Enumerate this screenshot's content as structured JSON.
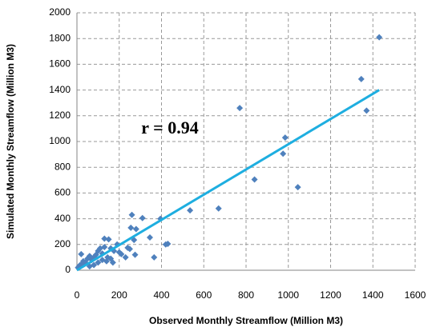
{
  "chart_data": {
    "type": "scatter",
    "annotation": "r = 0.94",
    "x_label": "Observed Monthly Streamflow (Million M3)",
    "y_label": "Simulated Monthly Streamflow (Million M3)",
    "xlim": [
      0,
      1600
    ],
    "xticks": [
      0,
      200,
      400,
      600,
      800,
      1000,
      1200,
      1400,
      1600
    ],
    "ylim": [
      0,
      2000
    ],
    "yticks": [
      0,
      200,
      400,
      600,
      800,
      1000,
      1200,
      1400,
      1600,
      1800,
      2000
    ],
    "grid": true,
    "series": [
      {
        "color": "#4f81bd",
        "x": [
          1430,
          1345,
          1370,
          770,
          985,
          975,
          1045,
          840,
          670,
          535,
          430,
          420,
          395,
          345,
          310,
          365,
          270,
          260,
          255,
          280,
          275,
          250,
          240,
          210,
          190,
          175,
          160,
          150,
          130,
          145,
          120,
          110,
          100,
          90,
          80,
          70,
          60,
          50,
          40,
          30,
          20,
          15,
          10,
          5,
          25,
          100,
          120,
          140,
          80,
          60,
          160,
          170,
          200,
          230,
          130
        ],
        "y": [
          1810,
          1485,
          1240,
          1260,
          1030,
          905,
          645,
          705,
          480,
          465,
          205,
          200,
          400,
          255,
          405,
          100,
          235,
          430,
          330,
          320,
          120,
          165,
          175,
          125,
          200,
          150,
          170,
          240,
          245,
          100,
          130,
          170,
          150,
          120,
          100,
          80,
          110,
          90,
          60,
          70,
          125,
          40,
          30,
          20,
          50,
          60,
          80,
          70,
          40,
          30,
          90,
          60,
          140,
          100,
          180
        ]
      }
    ],
    "trendline": {
      "color": "#1eaee0",
      "x": [
        0,
        1430
      ],
      "y": [
        0,
        1400
      ]
    }
  }
}
